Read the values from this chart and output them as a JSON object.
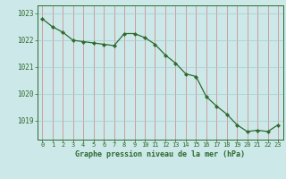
{
  "x": [
    0,
    1,
    2,
    3,
    4,
    5,
    6,
    7,
    8,
    9,
    10,
    11,
    12,
    13,
    14,
    15,
    16,
    17,
    18,
    19,
    20,
    21,
    22,
    23
  ],
  "y": [
    1022.8,
    1022.5,
    1022.3,
    1022.0,
    1021.95,
    1021.9,
    1021.85,
    1021.8,
    1022.25,
    1022.25,
    1022.1,
    1021.85,
    1021.45,
    1021.15,
    1020.75,
    1020.65,
    1019.9,
    1019.55,
    1019.25,
    1018.85,
    1018.6,
    1018.65,
    1018.6,
    1018.85
  ],
  "line_color": "#2d6a2d",
  "marker_color": "#2d6a2d",
  "bg_color": "#cce8e8",
  "vgrid_color": "#d08080",
  "hgrid_color": "#a8cccc",
  "title": "Graphe pression niveau de la mer (hPa)",
  "ylabel_ticks": [
    1019,
    1020,
    1021,
    1022,
    1023
  ],
  "xtick_labels": [
    "0",
    "1",
    "2",
    "3",
    "4",
    "5",
    "6",
    "7",
    "8",
    "9",
    "10",
    "11",
    "12",
    "13",
    "14",
    "15",
    "16",
    "17",
    "18",
    "19",
    "20",
    "21",
    "22",
    "23"
  ],
  "ylim": [
    1018.3,
    1023.3
  ],
  "xlim": [
    -0.5,
    23.5
  ]
}
